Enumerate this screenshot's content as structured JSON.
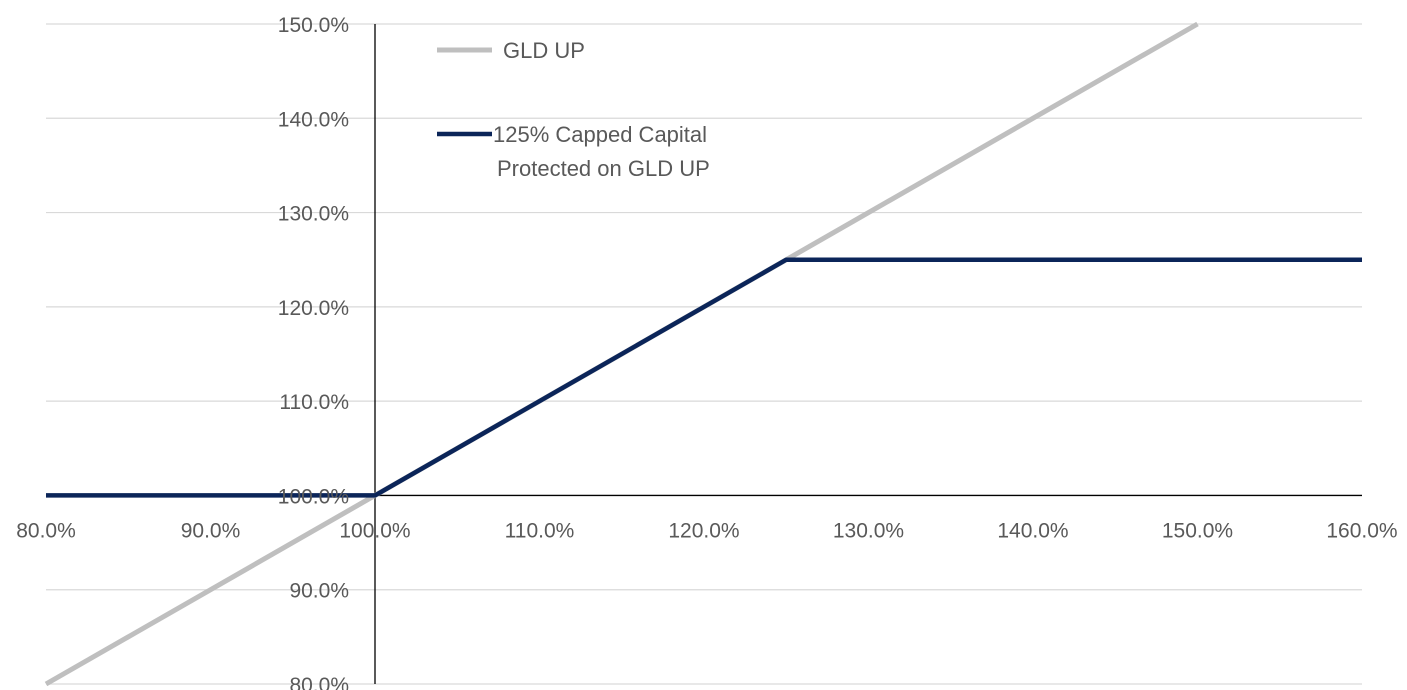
{
  "chart_data": {
    "type": "line",
    "title": "",
    "xlabel": "",
    "ylabel": "",
    "xlim": [
      0.8,
      1.6
    ],
    "ylim": [
      0.8,
      1.5
    ],
    "x_ticks": [
      0.8,
      0.9,
      1.0,
      1.1,
      1.2,
      1.3,
      1.4,
      1.5,
      1.6
    ],
    "y_ticks": [
      0.8,
      0.9,
      1.0,
      1.1,
      1.2,
      1.3,
      1.4,
      1.5
    ],
    "x_tick_labels": [
      "80.0%",
      "90.0%",
      "100.0%",
      "110.0%",
      "120.0%",
      "130.0%",
      "140.0%",
      "150.0%",
      "160.0%"
    ],
    "y_tick_labels": [
      "80.0%",
      "90.0%",
      "100.0%",
      "110.0%",
      "120.0%",
      "130.0%",
      "140.0%",
      "150.0%"
    ],
    "axis_cross": {
      "x": 1.0,
      "y": 1.0
    },
    "grid": "horizontal",
    "legend_position": "top-left",
    "series": [
      {
        "name": "GLD UP",
        "color": "#bfbfbf",
        "x": [
          0.8,
          1.5
        ],
        "y": [
          0.8,
          1.5
        ]
      },
      {
        "name": "125% Capped Capital Protected on GLD UP",
        "legend_lines": [
          "125% Capped Capital",
          "Protected on GLD UP"
        ],
        "color": "#0b2559",
        "x": [
          0.8,
          1.0,
          1.25,
          1.6
        ],
        "y": [
          1.0,
          1.0,
          1.25,
          1.25
        ]
      }
    ]
  }
}
